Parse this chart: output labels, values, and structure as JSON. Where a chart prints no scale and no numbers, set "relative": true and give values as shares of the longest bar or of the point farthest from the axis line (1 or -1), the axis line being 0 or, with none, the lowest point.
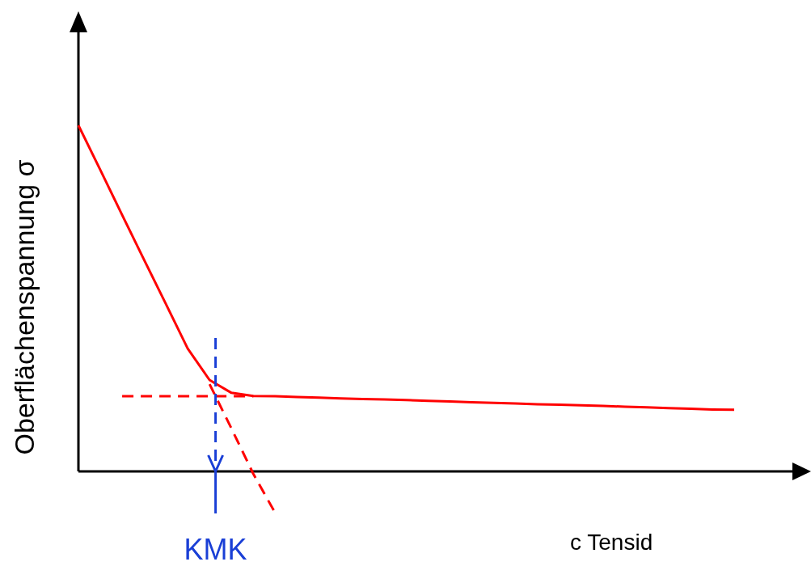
{
  "chart_data": {
    "type": "line",
    "relative": true,
    "xlabel": "c Tensid",
    "ylabel": "Oberflächenspannung σ",
    "annotations": [
      "KMK"
    ],
    "categories": [
      null,
      null,
      null,
      null,
      null,
      null,
      null,
      null,
      null,
      null,
      null,
      null,
      null,
      null,
      null,
      null,
      null,
      null,
      null,
      null,
      null,
      null,
      null,
      null,
      null,
      null,
      null,
      null,
      null,
      null,
      null
    ],
    "series": [
      {
        "color": "#ff0000",
        "line_style": "solid",
        "values": [
          1,
          0.871,
          0.741,
          0.612,
          0.484,
          0.355,
          0.264,
          0.227,
          0.218,
          0.217,
          0.215,
          0.213,
          0.211,
          0.209,
          0.208,
          0.206,
          0.204,
          0.202,
          0.2,
          0.198,
          0.196,
          0.194,
          0.193,
          0.191,
          0.189,
          0.187,
          0.185,
          0.183,
          0.181,
          0.179,
          0.178
        ]
      },
      {
        "color": "#ff0000",
        "line_style": "dashed",
        "values": [
          null,
          null,
          0.217,
          0.217,
          0.217,
          0.217,
          0.217,
          0.217,
          0.217,
          null,
          null,
          null,
          null,
          null,
          null,
          null,
          null,
          null,
          null,
          null,
          null,
          null,
          null,
          null,
          null,
          null,
          null,
          null,
          null,
          null,
          null
        ]
      },
      {
        "color": "#ff0000",
        "line_style": "dashed",
        "values": [
          null,
          null,
          null,
          null,
          null,
          null,
          0.252,
          0.124,
          -0.007,
          -0.12,
          null,
          null,
          null,
          null,
          null,
          null,
          null,
          null,
          null,
          null,
          null,
          null,
          null,
          null,
          null,
          null,
          null,
          null,
          null,
          null,
          null
        ]
      }
    ]
  }
}
